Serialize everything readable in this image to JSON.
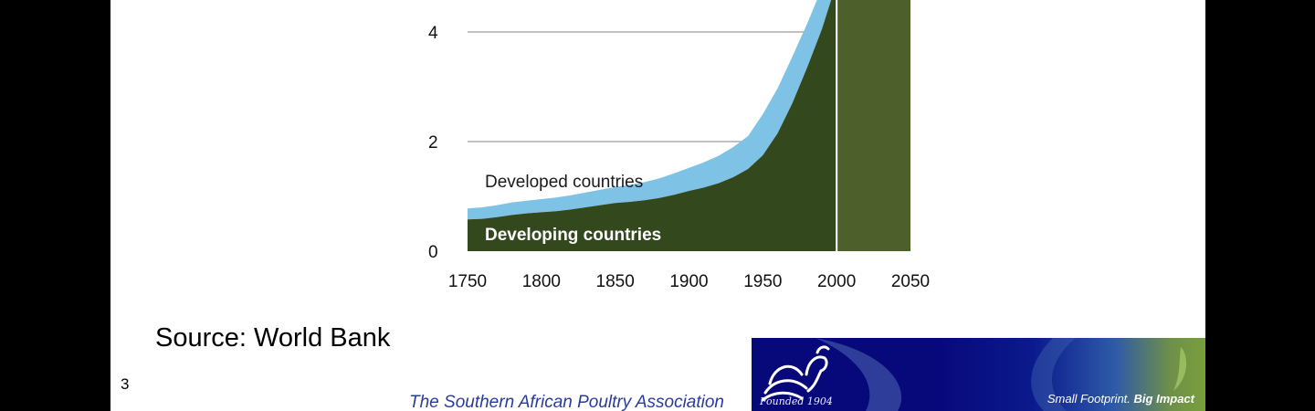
{
  "chart_data": {
    "type": "area",
    "x_ticks": [
      1750,
      1800,
      1850,
      1900,
      1950,
      2000,
      2050
    ],
    "y_ticks": [
      0,
      2,
      4
    ],
    "xlim": [
      1750,
      2050
    ],
    "ylim": [
      0,
      5.3
    ],
    "grid": "horizontal",
    "projection_start": 2000,
    "series": [
      {
        "name": "Developing countries",
        "color": "#33481d",
        "x": [
          1750,
          1760,
          1770,
          1780,
          1790,
          1800,
          1810,
          1820,
          1830,
          1840,
          1850,
          1860,
          1870,
          1880,
          1890,
          1900,
          1910,
          1920,
          1930,
          1940,
          1950,
          1960,
          1970,
          1980,
          1990,
          2000
        ],
        "y": [
          0.58,
          0.59,
          0.62,
          0.66,
          0.69,
          0.71,
          0.73,
          0.76,
          0.8,
          0.84,
          0.88,
          0.9,
          0.93,
          0.97,
          1.03,
          1.1,
          1.16,
          1.24,
          1.35,
          1.5,
          1.75,
          2.15,
          2.7,
          3.35,
          4.05,
          4.9
        ]
      },
      {
        "name": "Developed countries",
        "color": "#7ec3e6",
        "x": [
          1750,
          1760,
          1770,
          1780,
          1790,
          1800,
          1810,
          1820,
          1830,
          1840,
          1850,
          1860,
          1870,
          1880,
          1890,
          1900,
          1910,
          1920,
          1930,
          1940,
          1950,
          1960,
          1970,
          1980,
          1990,
          2000
        ],
        "y": [
          0.2,
          0.21,
          0.22,
          0.23,
          0.23,
          0.24,
          0.25,
          0.26,
          0.27,
          0.28,
          0.29,
          0.31,
          0.33,
          0.36,
          0.39,
          0.42,
          0.46,
          0.5,
          0.55,
          0.6,
          0.75,
          0.82,
          0.85,
          0.8,
          0.75,
          0.7
        ]
      }
    ],
    "projection_color": "#4d5f2b"
  },
  "labels": {
    "developed": "Developed countries",
    "developing": "Developing countries"
  },
  "source_text": "Source: World Bank",
  "slide_number": "3",
  "organization": "The Southern African Poultry Association",
  "banner": {
    "founded": "Founded 1904",
    "tagline_prefix": "Small Footprint.",
    "tagline_bold": "Big Impact",
    "colors": {
      "navy": "#07087a",
      "green": "#78a03a"
    }
  }
}
